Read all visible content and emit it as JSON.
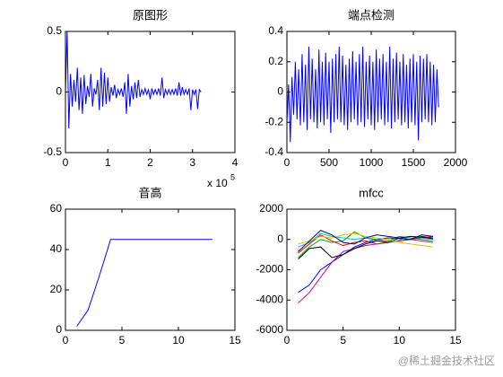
{
  "chart_data": [
    {
      "type": "line",
      "title": "原图形",
      "xlim": [
        0,
        4
      ],
      "xticks": [
        0,
        1,
        2,
        3,
        4
      ],
      "ylim": [
        -0.5,
        0.5
      ],
      "yticks": [
        -0.5,
        0,
        0.5
      ],
      "x_scale_label": "x 10",
      "x_scale_exponent": "5",
      "x": [
        0,
        0.04,
        0.08,
        0.12,
        0.16,
        0.2,
        0.24,
        0.28,
        0.32,
        0.36,
        0.4,
        0.44,
        0.48,
        0.52,
        0.56,
        0.6,
        0.64,
        0.68,
        0.72,
        0.76,
        0.8,
        0.84,
        0.88,
        0.92,
        0.96,
        1.0,
        1.04,
        1.08,
        1.12,
        1.16,
        1.2,
        1.24,
        1.28,
        1.32,
        1.36,
        1.4,
        1.44,
        1.48,
        1.52,
        1.56,
        1.6,
        1.64,
        1.68,
        1.72,
        1.76,
        1.8,
        1.84,
        1.88,
        1.92,
        1.96,
        2.0,
        2.04,
        2.08,
        2.12,
        2.16,
        2.2,
        2.24,
        2.28,
        2.32,
        2.36,
        2.4,
        2.44,
        2.48,
        2.52,
        2.56,
        2.6,
        2.64,
        2.68,
        2.72,
        2.76,
        2.8,
        2.84,
        2.88,
        2.92,
        2.96,
        3.0,
        3.04,
        3.08,
        3.12,
        3.16,
        3.2
      ],
      "series": [
        {
          "color": "#0000ff",
          "values": [
            0,
            0.5,
            -0.3,
            0.15,
            -0.12,
            0.1,
            -0.08,
            0.2,
            -0.15,
            0.12,
            -0.18,
            0.14,
            -0.1,
            0.05,
            -0.04,
            0.15,
            -0.12,
            0.03,
            -0.02,
            0.1,
            -0.15,
            0.2,
            -0.12,
            0.16,
            -0.1,
            0.12,
            -0.08,
            0.04,
            -0.03,
            0.06,
            -0.05,
            0.02,
            -0.02,
            0.03,
            -0.04,
            0.08,
            -0.18,
            0.15,
            -0.12,
            0.05,
            -0.06,
            0.08,
            -0.05,
            0.1,
            -0.04,
            0.02,
            -0.02,
            0.03,
            -0.02,
            0.02,
            -0.06,
            0.03,
            -0.02,
            0.02,
            -0.02,
            0.03,
            -0.03,
            0.12,
            -0.05,
            0.02,
            -0.02,
            0.02,
            -0.02,
            0.02,
            -0.02,
            0.03,
            -0.03,
            0.08,
            -0.03,
            0.04,
            -0.02,
            0.02,
            -0.02,
            0.03,
            -0.15,
            0.02,
            -0.02,
            0.02,
            -0.14,
            0.02,
            0
          ]
        }
      ]
    },
    {
      "type": "line",
      "title": "端点检测",
      "xlim": [
        0,
        2000
      ],
      "xticks": [
        0,
        500,
        1000,
        1500,
        2000
      ],
      "ylim": [
        -0.4,
        0.4
      ],
      "yticks": [
        -0.4,
        -0.2,
        0,
        0.2,
        0.4
      ],
      "x": [
        0,
        20,
        40,
        60,
        80,
        100,
        120,
        140,
        160,
        180,
        200,
        220,
        240,
        260,
        280,
        300,
        320,
        340,
        360,
        380,
        400,
        420,
        440,
        460,
        480,
        500,
        520,
        540,
        560,
        580,
        600,
        620,
        640,
        660,
        680,
        700,
        720,
        740,
        760,
        780,
        800,
        820,
        840,
        860,
        880,
        900,
        920,
        940,
        960,
        980,
        1000,
        1020,
        1040,
        1060,
        1080,
        1100,
        1120,
        1140,
        1160,
        1180,
        1200,
        1220,
        1240,
        1260,
        1280,
        1300,
        1320,
        1340,
        1360,
        1380,
        1400,
        1420,
        1440,
        1460,
        1480,
        1500,
        1520,
        1540,
        1560,
        1580,
        1600,
        1620,
        1640,
        1660,
        1680,
        1700,
        1720,
        1740,
        1760,
        1780,
        1800
      ],
      "series": [
        {
          "color": "#0000ff",
          "values": [
            -0.2,
            0.05,
            -0.33,
            0.1,
            -0.15,
            0.2,
            -0.18,
            0.15,
            -0.22,
            0.25,
            -0.2,
            0.18,
            -0.25,
            0.3,
            -0.18,
            0.22,
            -0.2,
            0.15,
            -0.24,
            0.28,
            -0.2,
            0.2,
            -0.22,
            0.26,
            -0.18,
            0.2,
            -0.27,
            0.22,
            -0.2,
            0.25,
            -0.18,
            0.3,
            -0.2,
            0.24,
            -0.22,
            0.18,
            -0.25,
            0.22,
            -0.2,
            0.27,
            -0.18,
            0.2,
            -0.22,
            0.25,
            -0.2,
            0.3,
            -0.23,
            0.2,
            -0.18,
            0.24,
            -0.22,
            0.2,
            -0.25,
            0.28,
            -0.2,
            0.22,
            -0.18,
            0.25,
            -0.22,
            0.2,
            -0.2,
            0.3,
            -0.24,
            0.22,
            -0.2,
            0.26,
            -0.18,
            0.2,
            -0.22,
            0.25,
            -0.2,
            0.18,
            -0.24,
            0.22,
            -0.2,
            0.25,
            -0.22,
            0.2,
            -0.32,
            0.24,
            -0.2,
            0.22,
            -0.18,
            0.25,
            -0.2,
            0.2,
            -0.22,
            0.18,
            -0.2,
            0.15,
            -0.1
          ]
        }
      ]
    },
    {
      "type": "line",
      "title": "音高",
      "xlim": [
        0,
        15
      ],
      "xticks": [
        0,
        5,
        10,
        15
      ],
      "ylim": [
        0,
        60
      ],
      "yticks": [
        0,
        20,
        40,
        60
      ],
      "x": [
        1,
        2,
        3,
        4,
        5,
        6,
        7,
        8,
        9,
        10,
        11,
        12,
        13
      ],
      "series": [
        {
          "color": "#0000ff",
          "values": [
            2,
            10,
            27,
            45,
            45,
            45,
            45,
            45,
            45,
            45,
            45,
            45,
            45
          ]
        }
      ]
    },
    {
      "type": "line",
      "title": "mfcc",
      "xlim": [
        0,
        15
      ],
      "xticks": [
        0,
        5,
        10,
        15
      ],
      "ylim": [
        -6000,
        2000
      ],
      "yticks": [
        -6000,
        -4000,
        -2000,
        0,
        2000
      ],
      "x": [
        1,
        2,
        3,
        4,
        5,
        6,
        7,
        8,
        9,
        10,
        11,
        12,
        13
      ],
      "series": [
        {
          "color": "#0000ff",
          "values": [
            -3500,
            -3000,
            -2000,
            -1500,
            -1000,
            -500,
            -200,
            0,
            100,
            50,
            0,
            200,
            100
          ]
        },
        {
          "color": "#bf00bf",
          "values": [
            -4200,
            -3500,
            -2500,
            -1500,
            -800,
            -600,
            -400,
            -300,
            -200,
            -100,
            0,
            -100,
            -200
          ]
        },
        {
          "color": "#00a000",
          "values": [
            -1200,
            -500,
            0,
            -200,
            -100,
            500,
            100,
            0,
            -100,
            200,
            100,
            0,
            -100
          ]
        },
        {
          "color": "#ff0000",
          "values": [
            -900,
            -300,
            300,
            -100,
            -400,
            -200,
            -100,
            -300,
            -200,
            -100,
            0,
            100,
            200
          ]
        },
        {
          "color": "#00bfbf",
          "values": [
            -500,
            -200,
            400,
            200,
            100,
            0,
            100,
            -100,
            -200,
            -50,
            200,
            100,
            0
          ]
        },
        {
          "color": "#000000",
          "values": [
            -1300,
            -600,
            -500,
            -1200,
            -1000,
            -600,
            -300,
            -100,
            -200,
            100,
            200,
            150,
            50
          ]
        },
        {
          "color": "#d0c000",
          "values": [
            -300,
            -100,
            200,
            100,
            300,
            400,
            200,
            100,
            0,
            -200,
            -300,
            -400,
            -500
          ]
        },
        {
          "color": "#000080",
          "values": [
            -800,
            -100,
            600,
            300,
            -200,
            -300,
            100,
            300,
            200,
            100,
            0,
            300,
            200
          ]
        }
      ]
    }
  ],
  "watermark": "@稀土掘金技术社区"
}
